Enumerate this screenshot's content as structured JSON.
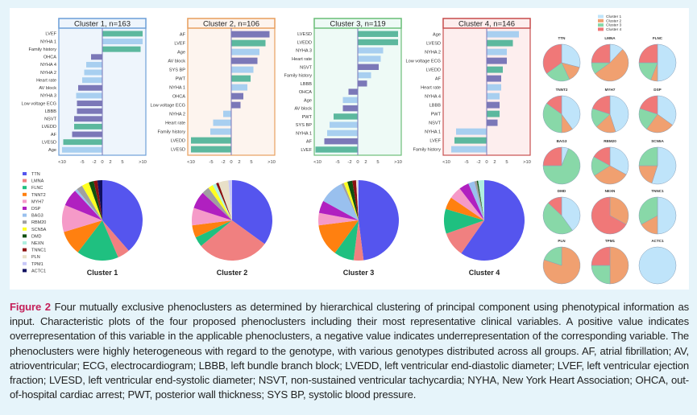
{
  "figure": {
    "label": "Figure 2",
    "caption": "Four mutually exclusive phenoclusters as determined by hierarchical clustering of principal component using phenotypical information as input. Characteristic plots of the four proposed phenoclusters including their most representative clinical variables. A positive value indicates overrepresentation of this variable in the applicable phenoclusters, a negative value indicates underrepresentation of the corresponding variable. The phenoclusters were highly heterogeneous with regard to the genotype, with various genotypes distributed across all groups. AF, atrial fibrillation; AV, atrioventricular; ECG, electrocardiogram; LBBB, left bundle branch block; LVEDD, left ventricular end-diastolic diameter; LVEF, left ventricular ejection fraction; LVESD, left ventricular end-systolic diameter; NSVT, non-sustained ventricular tachycardia; NYHA, New York Heart Association; OHCA, out-of-hospital cardiac arrest; PWT, posterior wall thickness; SYS BP, systolic blood pressure."
  },
  "chart_data": [
    {
      "type": "bar",
      "orientation": "horizontal",
      "title": "Cluster 1, n=163",
      "frame_color": "#6fa0d8",
      "fill_color": "#eef5fc",
      "xlim": [
        -10,
        10
      ],
      "ticks": [
        {
          "v": -10,
          "label": "<10"
        },
        {
          "v": -5,
          "label": "-5"
        },
        {
          "v": -2,
          "label": "-2"
        },
        {
          "v": 0,
          "label": "0"
        },
        {
          "v": 2,
          "label": "2"
        },
        {
          "v": 5,
          "label": "5"
        },
        {
          "v": 10,
          "label": ">10"
        }
      ],
      "bars": [
        {
          "label": "LVEF",
          "value": 10,
          "color": "#5cb89e"
        },
        {
          "label": "NYHA 1",
          "value": 10,
          "color": "#a8cff0"
        },
        {
          "label": "Family history",
          "value": 9.5,
          "color": "#5cb89e"
        },
        {
          "label": "OHCA",
          "value": -2.8,
          "color": "#7b78b8"
        },
        {
          "label": "NYHA 4",
          "value": -4,
          "color": "#a8cff0"
        },
        {
          "label": "NYHA 2",
          "value": -4.5,
          "color": "#a8cff0"
        },
        {
          "label": "Heart rate",
          "value": -5,
          "color": "#a8cff0"
        },
        {
          "label": "AV block",
          "value": -6,
          "color": "#7b78b8"
        },
        {
          "label": "NYHA 3",
          "value": -6.5,
          "color": "#a8cff0"
        },
        {
          "label": "Low voltage ECG",
          "value": -6.3,
          "color": "#7b78b8"
        },
        {
          "label": "LBBB",
          "value": -6.3,
          "color": "#7b78b8"
        },
        {
          "label": "NSVT",
          "value": -7,
          "color": "#7b78b8"
        },
        {
          "label": "LVEDD",
          "value": -7,
          "color": "#5cb89e"
        },
        {
          "label": "AF",
          "value": -7.5,
          "color": "#7b78b8"
        },
        {
          "label": "LVESD",
          "value": -9.7,
          "color": "#5cb89e"
        },
        {
          "label": "Age",
          "value": -10,
          "color": "#a8cff0"
        }
      ]
    },
    {
      "type": "bar",
      "orientation": "horizontal",
      "title": "Cluster 2, n=106",
      "frame_color": "#e8a060",
      "fill_color": "#fdf4ee",
      "xlim": [
        -10,
        10
      ],
      "ticks": [
        {
          "v": -10,
          "label": "<10"
        },
        {
          "v": -5,
          "label": "-5"
        },
        {
          "v": -2,
          "label": "-2"
        },
        {
          "v": 0,
          "label": "0"
        },
        {
          "v": 2,
          "label": "2"
        },
        {
          "v": 5,
          "label": "5"
        },
        {
          "v": 10,
          "label": ">10"
        }
      ],
      "bars": [
        {
          "label": "AF",
          "value": 9.5,
          "color": "#7b78b8"
        },
        {
          "label": "LVEF",
          "value": 8.5,
          "color": "#5cb89e"
        },
        {
          "label": "Age",
          "value": 7,
          "color": "#a8cff0"
        },
        {
          "label": "AV block",
          "value": 6.5,
          "color": "#7b78b8"
        },
        {
          "label": "SYS BP",
          "value": 5.5,
          "color": "#a8cff0"
        },
        {
          "label": "PWT",
          "value": 4.8,
          "color": "#5cb89e"
        },
        {
          "label": "NYHA 1",
          "value": 4,
          "color": "#a8cff0"
        },
        {
          "label": "OHCA",
          "value": 3,
          "color": "#7b78b8"
        },
        {
          "label": "Low voltage ECG",
          "value": 2.3,
          "color": "#7b78b8"
        },
        {
          "label": "NYHA 2",
          "value": -2,
          "color": "#a8cff0"
        },
        {
          "label": "Heart rate",
          "value": -4.5,
          "color": "#a8cff0"
        },
        {
          "label": "Family history",
          "value": -5.2,
          "color": "#a8cff0"
        },
        {
          "label": "LVEDD",
          "value": -10,
          "color": "#5cb89e"
        },
        {
          "label": "LVESD",
          "value": -10,
          "color": "#5cb89e"
        }
      ]
    },
    {
      "type": "bar",
      "orientation": "horizontal",
      "title": "Cluster 3, n=119",
      "frame_color": "#6dbf7a",
      "fill_color": "#eefaf6",
      "xlim": [
        -10,
        10
      ],
      "ticks": [
        {
          "v": -10,
          "label": "<10"
        },
        {
          "v": -5,
          "label": "-5"
        },
        {
          "v": -2,
          "label": "-2"
        },
        {
          "v": 0,
          "label": "0"
        },
        {
          "v": 2,
          "label": "2"
        },
        {
          "v": 5,
          "label": "5"
        },
        {
          "v": 10,
          "label": ">10"
        }
      ],
      "bars": [
        {
          "label": "LVESD",
          "value": 10,
          "color": "#5cb89e"
        },
        {
          "label": "LVEDD",
          "value": 10,
          "color": "#5cb89e"
        },
        {
          "label": "NYHA 3",
          "value": 6.3,
          "color": "#a8cff0"
        },
        {
          "label": "Heart rate",
          "value": 5.7,
          "color": "#a8cff0"
        },
        {
          "label": "NSVT",
          "value": 5.2,
          "color": "#7b78b8"
        },
        {
          "label": "Family history",
          "value": 3.3,
          "color": "#a8cff0"
        },
        {
          "label": "LBBB",
          "value": 2.3,
          "color": "#7b78b8"
        },
        {
          "label": "OHCA",
          "value": -2.3,
          "color": "#7b78b8"
        },
        {
          "label": "Age",
          "value": -3.7,
          "color": "#a8cff0"
        },
        {
          "label": "AV block",
          "value": -3.7,
          "color": "#7b78b8"
        },
        {
          "label": "PWT",
          "value": -6,
          "color": "#5cb89e"
        },
        {
          "label": "SYS BP",
          "value": -7,
          "color": "#a8cff0"
        },
        {
          "label": "NYHA 1",
          "value": -7.6,
          "color": "#a8cff0"
        },
        {
          "label": "AF",
          "value": -8.3,
          "color": "#7b78b8"
        },
        {
          "label": "LVEF",
          "value": -10.5,
          "color": "#5cb89e"
        }
      ]
    },
    {
      "type": "bar",
      "orientation": "horizontal",
      "title": "Cluster 4, n=146",
      "frame_color": "#c85050",
      "fill_color": "#fdeeee",
      "xlim": [
        -10,
        10
      ],
      "ticks": [
        {
          "v": -10,
          "label": "<10"
        },
        {
          "v": -5,
          "label": "-5"
        },
        {
          "v": -2,
          "label": "-2"
        },
        {
          "v": 0,
          "label": "0"
        },
        {
          "v": 2,
          "label": "2"
        },
        {
          "v": 5,
          "label": "5"
        },
        {
          "v": 10,
          "label": ">10"
        }
      ],
      "bars": [
        {
          "label": "Age",
          "value": 8,
          "color": "#a8cff0"
        },
        {
          "label": "LVESD",
          "value": 6.5,
          "color": "#5cb89e"
        },
        {
          "label": "NYHA 2",
          "value": 5,
          "color": "#a8cff0"
        },
        {
          "label": "Low voltage ECG",
          "value": 5,
          "color": "#7b78b8"
        },
        {
          "label": "LVEDD",
          "value": 4,
          "color": "#5cb89e"
        },
        {
          "label": "AF",
          "value": 3.6,
          "color": "#7b78b8"
        },
        {
          "label": "Heart rate",
          "value": 3.6,
          "color": "#a8cff0"
        },
        {
          "label": "NYHA 4",
          "value": 3.2,
          "color": "#a8cff0"
        },
        {
          "label": "LBBB",
          "value": 3.2,
          "color": "#7b78b8"
        },
        {
          "label": "PWT",
          "value": 3.2,
          "color": "#5cb89e"
        },
        {
          "label": "NSVT",
          "value": 2.7,
          "color": "#7b78b8"
        },
        {
          "label": "NYHA 1",
          "value": -7.6,
          "color": "#a8cff0"
        },
        {
          "label": "LVEF",
          "value": -8,
          "color": "#5cb89e"
        },
        {
          "label": "Family history",
          "value": -8.8,
          "color": "#a8cff0"
        }
      ]
    },
    {
      "type": "pie",
      "description_of": "genotype distribution per cluster",
      "genes": [
        "TTN",
        "LMNA",
        "FLNC",
        "TNNT2",
        "MYH7",
        "DSP",
        "BAG3",
        "RBM20",
        "SCN5A",
        "DMD",
        "NEXN",
        "TNNC1",
        "PLN",
        "TPM1",
        "ACTC1"
      ],
      "gene_colors": [
        "#5555ee",
        "#f08080",
        "#1fc080",
        "#ff8010",
        "#f59ac8",
        "#b020c0",
        "#99c0ee",
        "#a0a0a0",
        "#ffff20",
        "#105010",
        "#b0f0e0",
        "#8b1010",
        "#e8e0c8",
        "#c8c8f8",
        "#101060"
      ],
      "pies": [
        {
          "label": "Cluster 1",
          "values": [
            0.39,
            0.05,
            0.17,
            0.1,
            0.11,
            0.07,
            0.01,
            0.025,
            0.03,
            0.02,
            0,
            0.015,
            0,
            0,
            0.02
          ]
        },
        {
          "label": "Cluster 2",
          "values": [
            0.35,
            0.29,
            0.04,
            0.05,
            0.07,
            0.07,
            0,
            0.03,
            0.02,
            0,
            0.015,
            0.01,
            0.04,
            0.015,
            0
          ]
        },
        {
          "label": "Cluster 3",
          "values": [
            0.48,
            0.04,
            0.08,
            0.13,
            0.05,
            0.05,
            0.1,
            0.01,
            0.015,
            0.02,
            0,
            0.015,
            0.005,
            0.005,
            0
          ]
        },
        {
          "label": "Cluster 4",
          "values": [
            0.6,
            0.1,
            0.1,
            0.05,
            0.05,
            0.04,
            0.025,
            0.01,
            0,
            0.005,
            0.025,
            0,
            0,
            0,
            0
          ]
        }
      ]
    },
    {
      "type": "pie",
      "description_of": "cluster distribution per gene",
      "legend": [
        "Cluster 1",
        "Cluster 2",
        "Cluster 3",
        "Cluster 4"
      ],
      "cluster_colors": [
        "#bfe4fa",
        "#f0a070",
        "#88d8a8",
        "#f07878"
      ],
      "pies": [
        {
          "label": "TTN",
          "values": [
            0.29,
            0.14,
            0.22,
            0.35
          ]
        },
        {
          "label": "LMNA",
          "values": [
            0.12,
            0.53,
            0.1,
            0.25
          ]
        },
        {
          "label": "FLNC",
          "values": [
            0.5,
            0.06,
            0.19,
            0.25
          ]
        },
        {
          "label": "TNNT2",
          "values": [
            0.4,
            0.1,
            0.35,
            0.15
          ]
        },
        {
          "label": "MYH7",
          "values": [
            0.45,
            0.18,
            0.17,
            0.2
          ]
        },
        {
          "label": "DSP",
          "values": [
            0.35,
            0.25,
            0.2,
            0.2
          ]
        },
        {
          "label": "BAG3",
          "values": [
            0.06,
            0,
            0.69,
            0.25
          ]
        },
        {
          "label": "RBM20",
          "values": [
            0.33,
            0.33,
            0.17,
            0.17
          ]
        },
        {
          "label": "SCN5A",
          "values": [
            0.55,
            0.2,
            0.25,
            0
          ]
        },
        {
          "label": "DMD",
          "values": [
            0.4,
            0,
            0.47,
            0.13
          ]
        },
        {
          "label": "NEXN",
          "values": [
            0,
            0.33,
            0,
            0.67
          ]
        },
        {
          "label": "TNNC1",
          "values": [
            0.5,
            0.17,
            0.33,
            0
          ]
        },
        {
          "label": "PLN",
          "values": [
            0,
            0.8,
            0.2,
            0
          ]
        },
        {
          "label": "TPM1",
          "values": [
            0,
            0.5,
            0.25,
            0.25
          ]
        },
        {
          "label": "ACTC1",
          "values": [
            1,
            0,
            0,
            0
          ]
        }
      ]
    }
  ]
}
